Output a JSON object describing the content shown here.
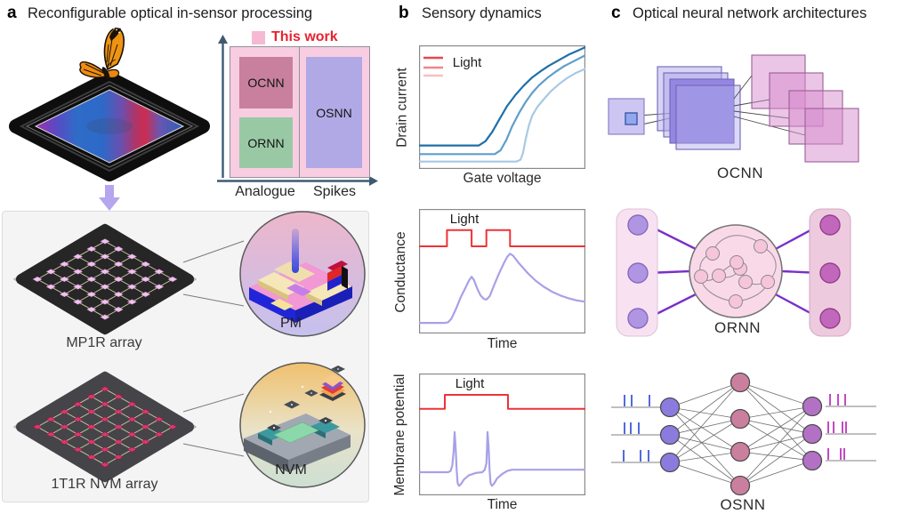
{
  "colors": {
    "accent_red": "#e8232e",
    "pulse_red": "#ee3238",
    "trace_purple": "#a8a1e8",
    "curve_dark_blue": "#1f6fa8",
    "curve_mid_blue": "#5f9dcb",
    "curve_light_blue": "#a7c9e5",
    "quadrant_pink": "#f8cde1",
    "ocnn_mauve": "#c8809e",
    "ornn_green": "#99c9a4",
    "osnn_purple": "#b1a9e6",
    "axis_slate": "#3e5a72",
    "spike_blue": "#3d5cd6",
    "spike_magenta": "#bb35bd"
  },
  "panel_a": {
    "label": "a",
    "title": "Reconfigurable optical in-sensor processing",
    "quadrant": {
      "legend_label": "This work",
      "boxes": [
        {
          "label": "OCNN",
          "color": "#c8809e"
        },
        {
          "label": "ORNN",
          "color": "#99c9a4"
        },
        {
          "label": "OSNN",
          "color": "#b1a9e6"
        }
      ],
      "x_labels": [
        "Analogue",
        "Spikes"
      ]
    },
    "arrays": [
      {
        "label": "MP1R array",
        "inset_label": "PM"
      },
      {
        "label": "1T1R NVM array",
        "inset_label": "NVM"
      }
    ]
  },
  "panel_b": {
    "label": "b",
    "title": "Sensory dynamics",
    "plots": [
      {
        "ylabel": "Drain current",
        "xlabel": "Gate voltage",
        "legend_label": "Light",
        "series": [
          {
            "name": "high light",
            "color": "#1f6fa8",
            "width": 2.2,
            "points": [
              [
                0,
                0.19
              ],
              [
                0.36,
                0.19
              ],
              [
                0.4,
                0.225
              ],
              [
                0.44,
                0.3
              ],
              [
                0.48,
                0.395
              ],
              [
                0.53,
                0.51
              ],
              [
                0.58,
                0.6
              ],
              [
                0.63,
                0.675
              ],
              [
                0.68,
                0.74
              ],
              [
                0.73,
                0.79
              ],
              [
                0.78,
                0.835
              ],
              [
                0.84,
                0.88
              ],
              [
                0.9,
                0.925
              ],
              [
                0.95,
                0.955
              ],
              [
                1,
                0.985
              ]
            ]
          },
          {
            "name": "medium light",
            "color": "#5f9dcb",
            "width": 2.2,
            "points": [
              [
                0,
                0.12
              ],
              [
                0.455,
                0.12
              ],
              [
                0.49,
                0.15
              ],
              [
                0.525,
                0.235
              ],
              [
                0.56,
                0.345
              ],
              [
                0.6,
                0.45
              ],
              [
                0.64,
                0.54
              ],
              [
                0.68,
                0.615
              ],
              [
                0.72,
                0.675
              ],
              [
                0.77,
                0.735
              ],
              [
                0.82,
                0.785
              ],
              [
                0.87,
                0.83
              ],
              [
                0.92,
                0.865
              ],
              [
                1,
                0.92
              ]
            ]
          },
          {
            "name": "low light",
            "color": "#a7c9e5",
            "width": 2.2,
            "points": [
              [
                0,
                0.06
              ],
              [
                0.585,
                0.06
              ],
              [
                0.61,
                0.075
              ],
              [
                0.625,
                0.13
              ],
              [
                0.64,
                0.235
              ],
              [
                0.66,
                0.35
              ],
              [
                0.68,
                0.43
              ],
              [
                0.71,
                0.5
              ],
              [
                0.75,
                0.565
              ],
              [
                0.79,
                0.625
              ],
              [
                0.84,
                0.685
              ],
              [
                0.89,
                0.735
              ],
              [
                0.94,
                0.775
              ],
              [
                1,
                0.81
              ]
            ]
          }
        ]
      },
      {
        "ylabel": "Conductance",
        "xlabel": "Time",
        "annotation": "Light",
        "series": [
          {
            "name": "light pulses",
            "color": "#ee3238",
            "width": 2,
            "points": [
              [
                0,
                0.7
              ],
              [
                0.168,
                0.7
              ],
              [
                0.168,
                0.83
              ],
              [
                0.316,
                0.83
              ],
              [
                0.316,
                0.7
              ],
              [
                0.405,
                0.7
              ],
              [
                0.405,
                0.83
              ],
              [
                0.547,
                0.83
              ],
              [
                0.547,
                0.7
              ],
              [
                1,
                0.7
              ]
            ]
          },
          {
            "name": "conductance",
            "color": "#a8a1e8",
            "width": 2.2,
            "points": [
              [
                0,
                0.085
              ],
              [
                0.155,
                0.085
              ],
              [
                0.175,
                0.09
              ],
              [
                0.195,
                0.12
              ],
              [
                0.22,
                0.19
              ],
              [
                0.25,
                0.29
              ],
              [
                0.28,
                0.37
              ],
              [
                0.3,
                0.425
              ],
              [
                0.316,
                0.455
              ],
              [
                0.33,
                0.43
              ],
              [
                0.35,
                0.36
              ],
              [
                0.37,
                0.305
              ],
              [
                0.39,
                0.278
              ],
              [
                0.405,
                0.272
              ],
              [
                0.425,
                0.3
              ],
              [
                0.45,
                0.385
              ],
              [
                0.48,
                0.48
              ],
              [
                0.51,
                0.565
              ],
              [
                0.53,
                0.615
              ],
              [
                0.547,
                0.64
              ],
              [
                0.565,
                0.625
              ],
              [
                0.6,
                0.565
              ],
              [
                0.65,
                0.49
              ],
              [
                0.7,
                0.425
              ],
              [
                0.75,
                0.375
              ],
              [
                0.8,
                0.335
              ],
              [
                0.85,
                0.305
              ],
              [
                0.9,
                0.282
              ],
              [
                0.95,
                0.265
              ],
              [
                1,
                0.255
              ]
            ]
          }
        ]
      },
      {
        "ylabel": "Membrane potential",
        "xlabel": "Time",
        "annotation": "Light",
        "series": [
          {
            "name": "light pulse",
            "color": "#ee3238",
            "width": 2,
            "points": [
              [
                0,
                0.71
              ],
              [
                0.155,
                0.71
              ],
              [
                0.155,
                0.825
              ],
              [
                0.535,
                0.825
              ],
              [
                0.535,
                0.71
              ],
              [
                1,
                0.71
              ]
            ]
          },
          {
            "name": "membrane potential",
            "color": "#a8a1e8",
            "width": 2.2,
            "points": [
              [
                0,
                0.19
              ],
              [
                0.175,
                0.19
              ],
              [
                0.19,
                0.2
              ],
              [
                0.2,
                0.245
              ],
              [
                0.208,
                0.36
              ],
              [
                0.214,
                0.52
              ],
              [
                0.22,
                0.4
              ],
              [
                0.226,
                0.21
              ],
              [
                0.232,
                0.1
              ],
              [
                0.24,
                0.078
              ],
              [
                0.25,
                0.09
              ],
              [
                0.27,
                0.13
              ],
              [
                0.3,
                0.165
              ],
              [
                0.34,
                0.183
              ],
              [
                0.38,
                0.19
              ],
              [
                0.395,
                0.21
              ],
              [
                0.405,
                0.26
              ],
              [
                0.408,
                0.36
              ],
              [
                0.412,
                0.52
              ],
              [
                0.418,
                0.4
              ],
              [
                0.424,
                0.21
              ],
              [
                0.43,
                0.1
              ],
              [
                0.438,
                0.078
              ],
              [
                0.45,
                0.095
              ],
              [
                0.47,
                0.14
              ],
              [
                0.5,
                0.175
              ],
              [
                0.53,
                0.2
              ],
              [
                0.56,
                0.21
              ],
              [
                1,
                0.21
              ]
            ]
          }
        ]
      }
    ]
  },
  "panel_c": {
    "label": "c",
    "title": "Optical neural network architectures",
    "diagrams": [
      {
        "label": "OCNN"
      },
      {
        "label": "ORNN"
      },
      {
        "label": "OSNN"
      }
    ],
    "osnn_spikes": {
      "input": [
        [
          17,
          25,
          45
        ],
        [
          17,
          24,
          33
        ],
        [
          16,
          35,
          44
        ]
      ],
      "output": [
        [
          248,
          257,
          265
        ],
        [
          246,
          252,
          262,
          266
        ],
        [
          246,
          260,
          264
        ]
      ]
    }
  }
}
